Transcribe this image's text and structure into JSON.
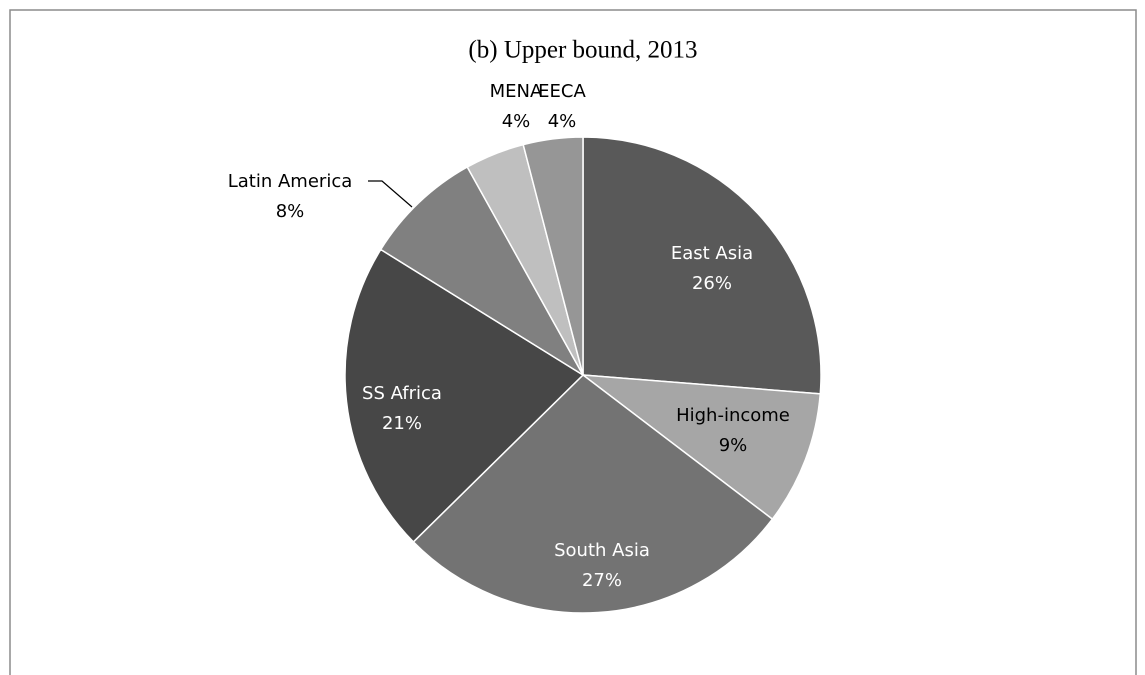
{
  "chart_data": {
    "type": "pie",
    "title": "(b) Upper bound, 2013",
    "categories": [
      "East Asia",
      "High-income",
      "South Asia",
      "SS Africa",
      "Latin America",
      "MENA",
      "EECA"
    ],
    "values": [
      26,
      9,
      27,
      21,
      8,
      4,
      4
    ],
    "value_labels": [
      "26%",
      "9%",
      "27%",
      "21%",
      "8%",
      "4%",
      "4%"
    ],
    "colors": [
      "#595959",
      "#a6a6a6",
      "#737373",
      "#474747",
      "#808080",
      "#bfbfbf",
      "#969696"
    ]
  }
}
